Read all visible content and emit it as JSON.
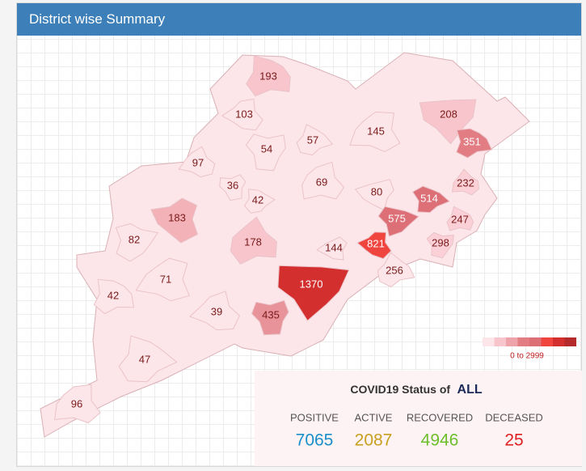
{
  "header": {
    "title": "District wise Summary"
  },
  "map": {
    "districts": [
      {
        "value": 193,
        "color": "#f8c5cc"
      },
      {
        "value": 103,
        "color": "#fde6e9"
      },
      {
        "value": 54,
        "color": "#fde6e9"
      },
      {
        "value": 57,
        "color": "#fde6e9"
      },
      {
        "value": 145,
        "color": "#fde6e9"
      },
      {
        "value": 208,
        "color": "#f8c5cc"
      },
      {
        "value": 351,
        "color": "#e37d84"
      },
      {
        "value": 97,
        "color": "#fde6e9"
      },
      {
        "value": 36,
        "color": "#fde6e9"
      },
      {
        "value": 42,
        "color": "#fde6e9"
      },
      {
        "value": 69,
        "color": "#fde6e9"
      },
      {
        "value": 80,
        "color": "#fde6e9"
      },
      {
        "value": 514,
        "color": "#dd6f77"
      },
      {
        "value": 232,
        "color": "#fbd0d6"
      },
      {
        "value": 183,
        "color": "#f3b1b8"
      },
      {
        "value": 82,
        "color": "#fde6e9"
      },
      {
        "value": 178,
        "color": "#f8c5cc"
      },
      {
        "value": 144,
        "color": "#fde6e9"
      },
      {
        "value": 575,
        "color": "#dd6f77"
      },
      {
        "value": 247,
        "color": "#fbd0d6"
      },
      {
        "value": 821,
        "color": "#f0443f"
      },
      {
        "value": 298,
        "color": "#fbd0d6"
      },
      {
        "value": 256,
        "color": "#fde6e9"
      },
      {
        "value": 71,
        "color": "#fde6e9"
      },
      {
        "value": 1370,
        "color": "#d42f2f"
      },
      {
        "value": 42,
        "color": "#fde6e9"
      },
      {
        "value": 39,
        "color": "#fde6e9"
      },
      {
        "value": 435,
        "color": "#e8929a"
      },
      {
        "value": 47,
        "color": "#fde6e9"
      },
      {
        "value": 96,
        "color": "#fde6e9"
      }
    ],
    "legend": {
      "colors": [
        "#fde6e9",
        "#f8c5cc",
        "#eea3aa",
        "#e37d84",
        "#dd6f77",
        "#f0443f",
        "#d42f2f",
        "#b52a2a"
      ],
      "label": "0 to 2999"
    }
  },
  "status": {
    "title": "COVID19 Status of",
    "scope": "ALL",
    "stats": [
      {
        "label": "POSITIVE",
        "value": 7065,
        "color": "#1a8fc9"
      },
      {
        "label": "ACTIVE",
        "value": 2087,
        "color": "#c8a020"
      },
      {
        "label": "RECOVERED",
        "value": 4946,
        "color": "#6cbf2a"
      },
      {
        "label": "DECEASED",
        "value": 25,
        "color": "#e02020"
      }
    ]
  }
}
